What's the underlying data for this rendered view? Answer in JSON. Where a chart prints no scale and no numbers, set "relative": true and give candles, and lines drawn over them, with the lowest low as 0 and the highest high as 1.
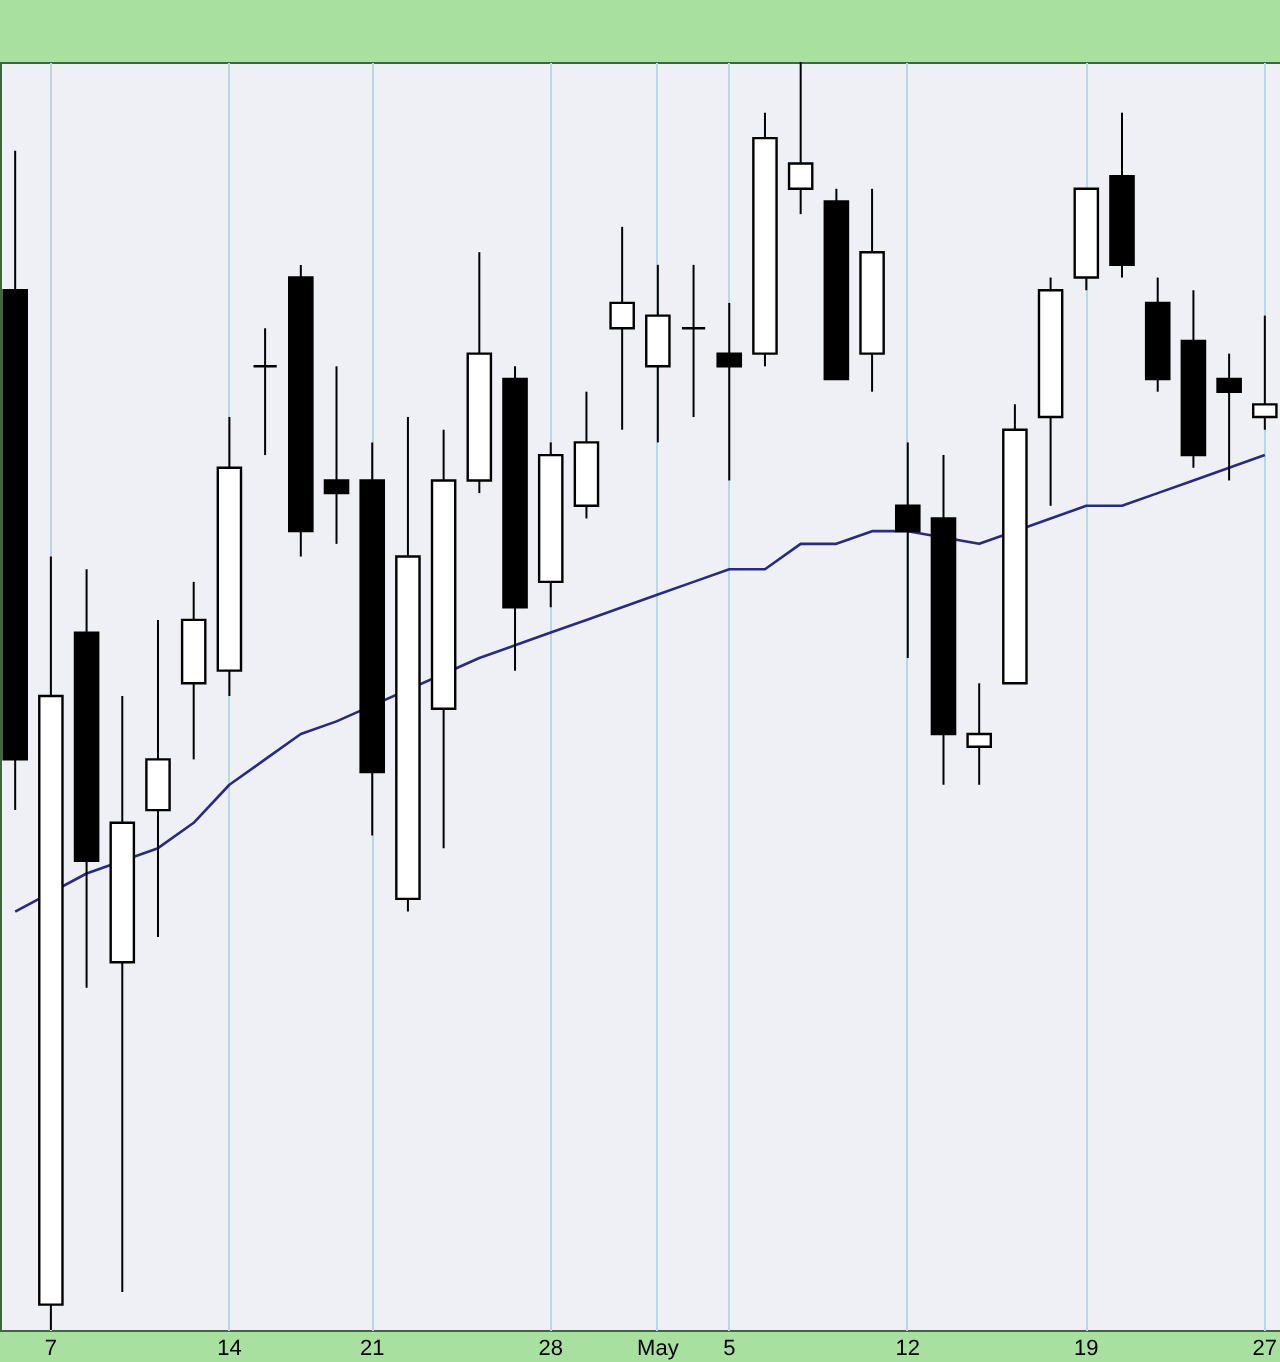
{
  "chart_data": {
    "type": "candlestick",
    "relative": true,
    "grid": "x",
    "categories": [
      null,
      "7",
      null,
      null,
      null,
      null,
      "14",
      null,
      null,
      null,
      "21",
      null,
      null,
      null,
      null,
      "28",
      null,
      null,
      "May",
      null,
      "5",
      null,
      null,
      null,
      null,
      "12",
      null,
      null,
      null,
      null,
      "19",
      null,
      null,
      null,
      null,
      "27"
    ],
    "ohlc": [
      [
        0.82,
        0.93,
        0.41,
        0.45
      ],
      [
        0.02,
        0.61,
        0,
        0.5
      ],
      [
        0.55,
        0.6,
        0.27,
        0.37
      ],
      [
        0.29,
        0.5,
        0.03,
        0.4
      ],
      [
        0.41,
        0.56,
        0.31,
        0.45
      ],
      [
        0.51,
        0.59,
        0.45,
        0.56
      ],
      [
        0.52,
        0.72,
        0.5,
        0.68
      ],
      [
        0.76,
        0.79,
        0.69,
        0.76
      ],
      [
        0.83,
        0.84,
        0.61,
        0.63
      ],
      [
        0.67,
        0.76,
        0.62,
        0.66
      ],
      [
        0.67,
        0.7,
        0.39,
        0.44
      ],
      [
        0.34,
        0.72,
        0.33,
        0.61
      ],
      [
        0.49,
        0.71,
        0.38,
        0.67
      ],
      [
        0.67,
        0.85,
        0.66,
        0.77
      ],
      [
        0.75,
        0.76,
        0.52,
        0.57
      ],
      [
        0.59,
        0.7,
        0.57,
        0.69
      ],
      [
        0.65,
        0.74,
        0.64,
        0.7
      ],
      [
        0.79,
        0.87,
        0.71,
        0.81
      ],
      [
        0.76,
        0.84,
        0.7,
        0.8
      ],
      [
        0.79,
        0.84,
        0.72,
        0.79
      ],
      [
        0.77,
        0.81,
        0.67,
        0.76
      ],
      [
        0.77,
        0.96,
        0.76,
        0.94
      ],
      [
        0.9,
        1,
        0.88,
        0.92
      ],
      [
        0.89,
        0.9,
        0.75,
        0.75
      ],
      [
        0.77,
        0.9,
        0.74,
        0.85
      ],
      [
        0.65,
        0.7,
        0.53,
        0.63
      ],
      [
        0.64,
        0.69,
        0.43,
        0.47
      ],
      [
        0.46,
        0.51,
        0.43,
        0.47
      ],
      [
        0.51,
        0.73,
        0.51,
        0.71
      ],
      [
        0.72,
        0.83,
        0.65,
        0.82
      ],
      [
        0.83,
        0.9,
        0.82,
        0.9
      ],
      [
        0.91,
        0.96,
        0.83,
        0.84
      ],
      [
        0.81,
        0.83,
        0.74,
        0.75
      ],
      [
        0.78,
        0.82,
        0.68,
        0.69
      ],
      [
        0.75,
        0.77,
        0.67,
        0.74
      ],
      [
        0.72,
        0.8,
        0.71,
        0.73
      ]
    ],
    "series": [
      {
        "type": "line",
        "color": "#2a2a80",
        "values": [
          0.33,
          null,
          0.36,
          null,
          0.38,
          0.4,
          0.43,
          0.45,
          0.47,
          0.48,
          null,
          null,
          null,
          0.53,
          0.54,
          0.55,
          0.56,
          0.57,
          0.58,
          0.59,
          0.6,
          0.6,
          0.62,
          0.62,
          0.63,
          0.63,
          null,
          0.62,
          null,
          0.64,
          0.65,
          0.65,
          0.66,
          0.67,
          0.68,
          0.69
        ]
      }
    ]
  }
}
